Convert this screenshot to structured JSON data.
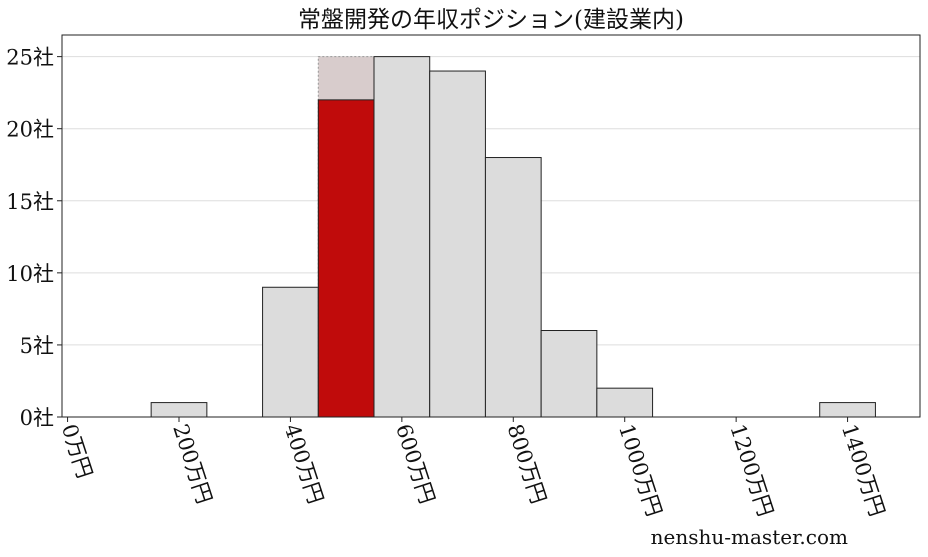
{
  "chart_data": {
    "type": "bar",
    "title": "常盤開発の年収ポジション(建設業内)",
    "xlabel": "",
    "ylabel": "",
    "x": [
      200,
      400,
      500,
      600,
      700,
      800,
      900,
      1000,
      1400
    ],
    "values": [
      1,
      9,
      22,
      25,
      24,
      18,
      6,
      2,
      1
    ],
    "bin_width": 100,
    "highlight": {
      "x": 500,
      "value": 22,
      "background_value": 25,
      "color": "#c00b0b",
      "background_color": "#d8cccc"
    },
    "bar_color": "#dcdcdc",
    "xlim": [
      -10,
      1530
    ],
    "ylim": [
      0,
      26.5
    ],
    "xticks": [
      0,
      200,
      400,
      600,
      800,
      1000,
      1200,
      1400
    ],
    "xtick_labels": [
      "0万円",
      "200万円",
      "400万円",
      "600万円",
      "800万円",
      "1000万円",
      "1200万円",
      "1400万円"
    ],
    "yticks": [
      0,
      5,
      10,
      15,
      20,
      25
    ],
    "ytick_labels": [
      "0社",
      "5社",
      "10社",
      "15社",
      "20社",
      "25社"
    ],
    "grid": "horizontal"
  },
  "watermark": "nenshu-master.com"
}
